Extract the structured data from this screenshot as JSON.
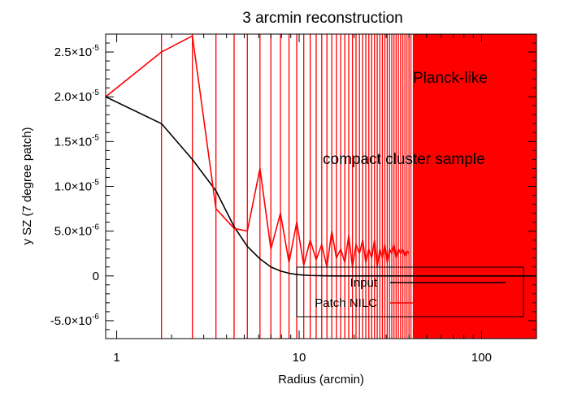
{
  "chart_data": {
    "type": "line",
    "title": "3 arcmin reconstruction",
    "xlabel": "Radius (arcmin)",
    "ylabel": "y SZ (7 degree patch)",
    "xscale": "log",
    "xlim": [
      0.87,
      200
    ],
    "ylim": [
      -7e-06,
      2.7e-05
    ],
    "x_ticks": [
      {
        "value": 1,
        "label": "1"
      },
      {
        "value": 10,
        "label": "10"
      },
      {
        "value": 100,
        "label": "100"
      }
    ],
    "y_ticks": [
      {
        "value": -5e-06,
        "mant": "-5.0×10",
        "exp": "-6"
      },
      {
        "value": 0,
        "mant": "0",
        "exp": ""
      },
      {
        "value": 5e-06,
        "mant": "5.0×10",
        "exp": "-6"
      },
      {
        "value": 1e-05,
        "mant": "1.0×10",
        "exp": "-5"
      },
      {
        "value": 1.5e-05,
        "mant": "1.5×10",
        "exp": "-5"
      },
      {
        "value": 2e-05,
        "mant": "2.0×10",
        "exp": "-5"
      },
      {
        "value": 2.5e-05,
        "mant": "2.5×10",
        "exp": "-5"
      }
    ],
    "series": [
      {
        "name": "Input",
        "color": "#000000",
        "x": [
          0.87,
          1.76,
          2.6,
          3.5,
          4.4,
          5.2,
          6.1,
          7.0,
          7.9,
          8.8,
          9.7,
          10.6,
          11.5,
          12.4,
          14,
          16,
          18,
          20,
          23,
          26,
          29,
          32,
          36,
          40,
          45,
          50,
          60,
          70,
          80,
          100,
          120,
          150,
          200
        ],
        "values": [
          2e-05,
          1.7e-05,
          1.3e-05,
          9.5e-06,
          5.5e-06,
          3.3e-06,
          1.9e-06,
          1e-06,
          5.5e-07,
          3e-07,
          1.6e-07,
          9e-08,
          5e-08,
          3e-08,
          1e-08,
          0,
          0,
          0,
          0,
          0,
          0,
          0,
          0,
          0,
          0,
          0,
          0,
          0,
          0,
          0,
          0,
          0,
          0
        ]
      },
      {
        "name": "Patch NILC",
        "color": "#ff0000",
        "x": [
          0.87,
          1.76,
          2.6,
          3.5,
          4.4,
          5.2,
          6.1,
          7.0,
          7.9,
          8.8,
          9.7,
          10.6,
          11.5,
          12.4,
          13.3,
          14.2,
          15.1,
          16.0,
          16.9,
          17.8,
          18.7,
          19.6,
          20.5,
          21.4,
          22.3,
          23.2,
          24.1,
          25.0,
          25.9,
          26.8,
          27.7,
          28.6,
          29.5,
          30.4,
          31.3,
          32.2,
          33.1,
          34.0,
          35.0,
          36.0,
          37.0,
          38.0,
          39.0,
          40.0
        ],
        "values": [
          2e-05,
          2.5e-05,
          2.68e-05,
          7.5e-06,
          5.3e-06,
          5e-06,
          1.2e-05,
          3e-06,
          7e-06,
          1.5e-06,
          6e-06,
          1.2e-06,
          4e-06,
          1.8e-06,
          3.5e-06,
          1e-06,
          5e-06,
          2e-06,
          3e-06,
          1.5e-06,
          4.5e-06,
          1e-06,
          3.5e-06,
          2.5e-06,
          4e-06,
          1.5e-06,
          3e-06,
          2e-06,
          4e-06,
          1e-06,
          3e-06,
          2e-06,
          3.5e-06,
          1.5e-06,
          3e-06,
          2.5e-06,
          3.5e-06,
          2e-06,
          3e-06,
          2.5e-06,
          3e-06,
          2.2e-06,
          2.8e-06,
          2.5e-06
        ]
      }
    ],
    "vlines": {
      "color": "#ff0000",
      "x": [
        1.76,
        2.6,
        3.5,
        4.4,
        5.2,
        6.1,
        7.0,
        7.9,
        8.8,
        9.7,
        10.6,
        11.5,
        12.4,
        13.3,
        14.2,
        15.1,
        16.0,
        16.9,
        17.8,
        18.7,
        19.6,
        20.5,
        21.4,
        22.3,
        23.2,
        24.1,
        25.0,
        25.9,
        26.8,
        27.7,
        28.6,
        29.5,
        30.4,
        31.3,
        32.2,
        33.1,
        34.0,
        35.0,
        36.0,
        37.0,
        38.0,
        39.0,
        40.0,
        41.0
      ]
    },
    "shaded_region": {
      "x_from": 42,
      "x_to": 200,
      "color": "#ff0000"
    },
    "annotations": [
      "Planck-like",
      "compact cluster sample"
    ],
    "legend": {
      "position": "lower-right",
      "entries": [
        {
          "label": "Input",
          "color": "#000000"
        },
        {
          "label": "Patch NILC",
          "color": "#ff0000"
        }
      ]
    }
  }
}
